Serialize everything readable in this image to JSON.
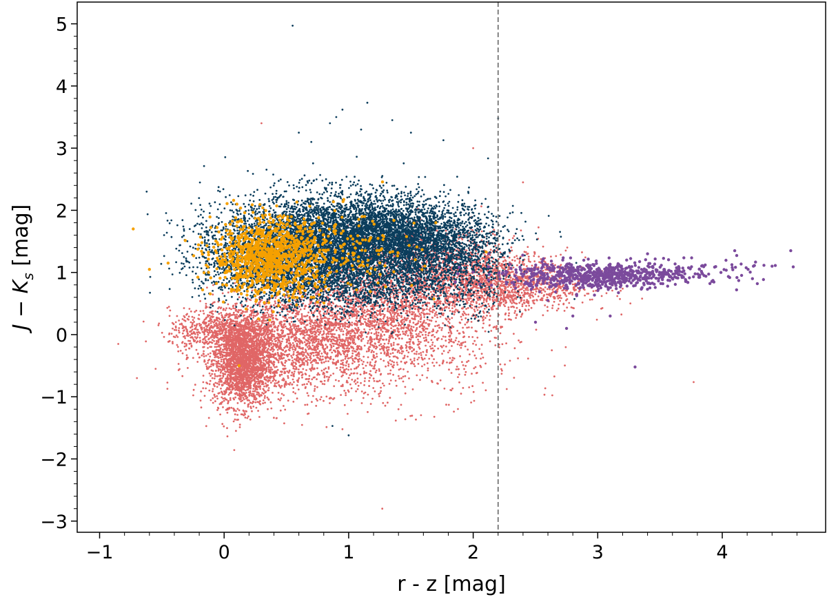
{
  "chart_data": {
    "type": "scatter",
    "xlabel": "r - z [mag]",
    "ylabel": "J − K_s [mag]",
    "ylabel_parts": {
      "main": "J − K",
      "sub": "s",
      "unit": " [mag]"
    },
    "xlim": [
      -1.18,
      4.83
    ],
    "ylim": [
      -3.18,
      5.35
    ],
    "x_ticks": [
      -1,
      0,
      1,
      2,
      3,
      4
    ],
    "x_tick_labels": [
      "−1",
      "0",
      "1",
      "2",
      "3",
      "4"
    ],
    "y_ticks": [
      -3,
      -2,
      -1,
      0,
      1,
      2,
      3,
      4,
      5
    ],
    "y_tick_labels": [
      "−3",
      "−2",
      "−1",
      "0",
      "1",
      "2",
      "3",
      "4",
      "5"
    ],
    "minor_ticks": true,
    "grid": false,
    "legend": "none",
    "reference_line": {
      "orientation": "vertical",
      "x": 2.2,
      "style": "dashed",
      "color": "#666666"
    },
    "series": [
      {
        "color": "#e06666",
        "point_radius": 1.4,
        "clusters": [
          {
            "cx": 0.15,
            "cy": -0.45,
            "sx": 0.12,
            "sy": 0.35,
            "n": 2200
          },
          {
            "cx": 0.0,
            "cy": 0.05,
            "sx": 0.22,
            "sy": 0.18,
            "n": 700
          },
          {
            "cx": 0.6,
            "cy": -0.1,
            "sx": 0.35,
            "sy": 0.4,
            "n": 1600
          },
          {
            "cx": 1.3,
            "cy": 0.35,
            "sx": 0.4,
            "sy": 0.4,
            "n": 1800
          },
          {
            "cx": 2.2,
            "cy": 0.8,
            "sx": 0.35,
            "sy": 0.22,
            "n": 1400
          },
          {
            "cx": 1.7,
            "cy": 1.2,
            "sx": 0.35,
            "sy": 0.25,
            "n": 800
          },
          {
            "cx": 1.2,
            "cy": -0.4,
            "sx": 0.6,
            "sy": 0.4,
            "n": 500
          }
        ],
        "outliers": [
          [
            1.27,
            -2.8
          ],
          [
            0.3,
            3.4
          ],
          [
            2.0,
            3.0
          ],
          [
            -0.85,
            -0.15
          ],
          [
            -0.7,
            -0.7
          ],
          [
            -0.55,
            -0.55
          ],
          [
            2.4,
            2.45
          ],
          [
            1.4,
            -1.2
          ]
        ]
      },
      {
        "color": "#0b3d5c",
        "point_radius": 1.4,
        "clusters": [
          {
            "cx": 0.9,
            "cy": 1.5,
            "sx": 0.45,
            "sy": 0.38,
            "n": 5000
          },
          {
            "cx": 1.45,
            "cy": 1.55,
            "sx": 0.35,
            "sy": 0.3,
            "n": 2400
          },
          {
            "cx": 0.4,
            "cy": 1.2,
            "sx": 0.3,
            "sy": 0.35,
            "n": 1600
          },
          {
            "cx": 1.1,
            "cy": 0.8,
            "sx": 0.4,
            "sy": 0.25,
            "n": 1000
          },
          {
            "cx": 1.9,
            "cy": 1.1,
            "sx": 0.2,
            "sy": 0.35,
            "n": 500
          }
        ],
        "outliers": [
          [
            0.55,
            4.97
          ],
          [
            0.95,
            3.62
          ],
          [
            1.15,
            3.73
          ],
          [
            0.9,
            3.5
          ],
          [
            1.35,
            3.45
          ],
          [
            1.5,
            3.25
          ],
          [
            0.6,
            3.25
          ],
          [
            0.85,
            3.4
          ],
          [
            1.0,
            -1.62
          ],
          [
            0.87,
            -1.47
          ],
          [
            2.2,
            3.48
          ],
          [
            0.7,
            3.1
          ],
          [
            1.1,
            3.3
          ]
        ]
      },
      {
        "color": "#f5a000",
        "point_radius": 2.2,
        "clusters": [
          {
            "cx": 0.35,
            "cy": 1.25,
            "sx": 0.22,
            "sy": 0.3,
            "n": 1000
          },
          {
            "cx": 0.85,
            "cy": 1.3,
            "sx": 0.35,
            "sy": 0.35,
            "n": 220
          }
        ],
        "outliers": [
          [
            -0.73,
            1.7
          ],
          [
            -0.6,
            1.05
          ],
          [
            0.12,
            -0.5
          ],
          [
            1.7,
            1.8
          ],
          [
            -0.45,
            1.15
          ]
        ]
      },
      {
        "color": "#7b4a9c",
        "point_radius": 2.2,
        "clusters": [
          {
            "cx": 2.95,
            "cy": 0.95,
            "sx": 0.35,
            "sy": 0.11,
            "n": 650
          },
          {
            "cx": 3.6,
            "cy": 1.0,
            "sx": 0.35,
            "sy": 0.1,
            "n": 140
          }
        ],
        "outliers": [
          [
            4.55,
            1.35
          ],
          [
            4.4,
            1.1
          ],
          [
            4.25,
            1.1
          ],
          [
            4.1,
            1.35
          ],
          [
            3.3,
            -0.52
          ],
          [
            3.1,
            0.3
          ],
          [
            2.75,
            0.1
          ],
          [
            2.8,
            0.3
          ],
          [
            2.6,
            0.55
          ],
          [
            3.4,
            1.3
          ],
          [
            2.5,
            0.2
          ]
        ]
      }
    ]
  }
}
